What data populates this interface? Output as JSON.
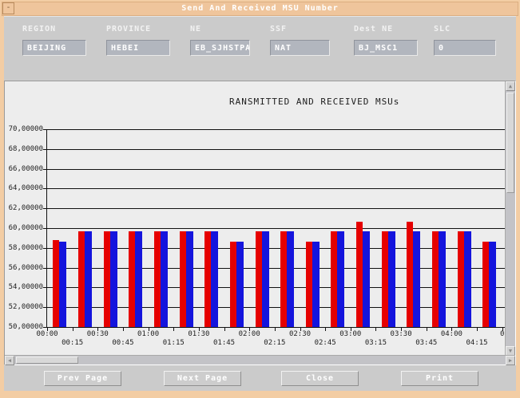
{
  "window": {
    "title": "Send And Received MSU Number",
    "menu_glyph": "-"
  },
  "form": {
    "fields": [
      {
        "label": "REGION",
        "value": "BEIJING"
      },
      {
        "label": "PROVINCE",
        "value": "HEBEI"
      },
      {
        "label": "NE",
        "value": "EB_SJHSTPA"
      },
      {
        "label": "SSF",
        "value": "NAT"
      },
      {
        "label": "Dest NE",
        "value": "BJ_MSC1"
      },
      {
        "label": "SLC",
        "value": "0"
      }
    ]
  },
  "buttons": [
    {
      "label": "Prev Page"
    },
    {
      "label": "Next Page"
    },
    {
      "label": "Close"
    },
    {
      "label": "Print"
    }
  ],
  "colors": {
    "window_frame": "#f3cda4",
    "titlebar_bg": "#efc59c",
    "form_bg": "#cbcbcb",
    "field_bg": "#b2b6be",
    "panel_bg": "#ededed",
    "bar_red": "#e60000",
    "bar_blue": "#1414dd"
  },
  "chart_data": {
    "type": "bar",
    "title": "RANSMITTED AND RECEIVED MSUs",
    "xlabel": "",
    "ylabel": "",
    "grid": "on",
    "legend": "none",
    "y_min": 5000000,
    "y_max": 7000000,
    "y_step": 200000,
    "y_tick_labels": [
      "70,00000",
      "68,00000",
      "66,00000",
      "64,00000",
      "62,00000",
      "60,00000",
      "58,00000",
      "56,00000",
      "54,00000",
      "52,00000",
      "50,00000"
    ],
    "categories": [
      "00:00",
      "00:15",
      "00:30",
      "00:45",
      "01:00",
      "01:15",
      "01:30",
      "01:45",
      "02:00",
      "02:15",
      "02:30",
      "02:45",
      "03:00",
      "03:15",
      "03:30",
      "03:45",
      "04:00",
      "04:15"
    ],
    "extra_x_tick_label": "0",
    "series": [
      {
        "name": "transmitted",
        "color": "#e60000",
        "values": [
          5880000,
          5970000,
          5970000,
          5970000,
          5970000,
          5970000,
          5970000,
          5870000,
          5970000,
          5970000,
          5870000,
          5970000,
          6070000,
          5970000,
          6070000,
          5970000,
          5970000,
          5870000
        ]
      },
      {
        "name": "received",
        "color": "#1414dd",
        "values": [
          5870000,
          5970000,
          5970000,
          5970000,
          5970000,
          5970000,
          5970000,
          5870000,
          5970000,
          5970000,
          5870000,
          5970000,
          5970000,
          5970000,
          5970000,
          5970000,
          5970000,
          5870000
        ]
      }
    ]
  }
}
